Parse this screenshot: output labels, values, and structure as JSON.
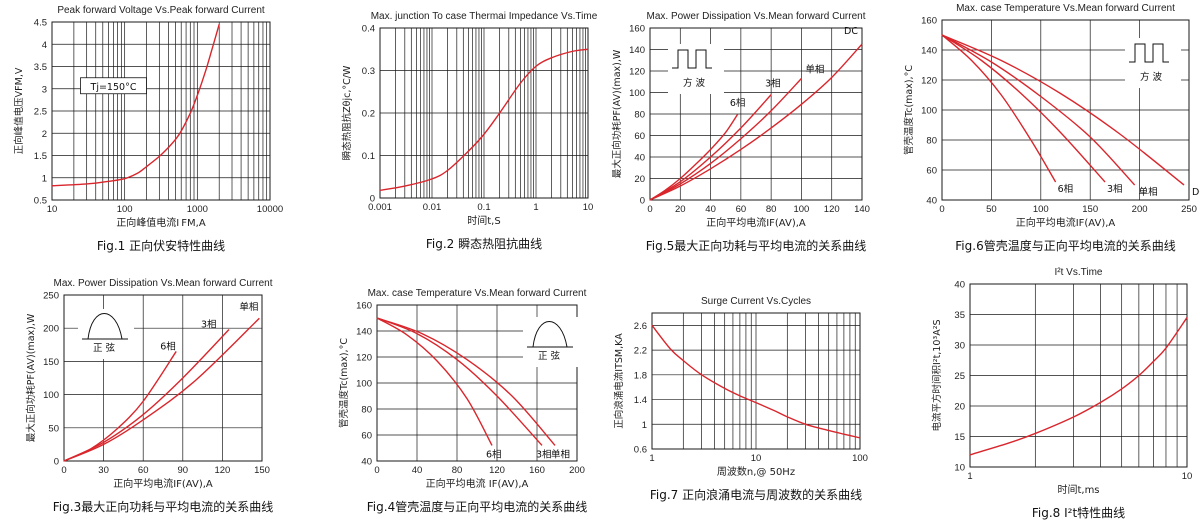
{
  "colors": {
    "curve": "#d9262c",
    "grid": "#1a1a1a"
  },
  "chart_data": [
    {
      "type": "line",
      "title": "Peak forward Voltage Vs.Peak forward Current",
      "caption": "Fig.1 正向伏安特性曲线",
      "xlabel": "正向峰值电流I FM,A",
      "ylabel": "正向峰值电压VFM,V",
      "xscale": "log",
      "xlim": [
        10,
        10000
      ],
      "ylim": [
        0.5,
        4.5
      ],
      "yticks": [
        0.5,
        1,
        1.5,
        2,
        2.5,
        3,
        3.5,
        4,
        4.5
      ],
      "xticks": [
        10,
        100,
        1000,
        10000
      ],
      "xtick_labels": [
        "10",
        "100",
        "1000",
        "10000"
      ],
      "grid": true,
      "annotations": [
        {
          "text": "Tj=150°C",
          "x": 28,
          "y": 3.0,
          "box": true
        }
      ],
      "series": [
        {
          "x": [
            10,
            30,
            60,
            100,
            150,
            200,
            300,
            400,
            500,
            600,
            800,
            1000,
            1300,
            1600,
            2000
          ],
          "y": [
            0.82,
            0.86,
            0.92,
            0.98,
            1.1,
            1.25,
            1.48,
            1.68,
            1.86,
            2.05,
            2.45,
            2.85,
            3.4,
            3.9,
            4.45
          ]
        }
      ]
    },
    {
      "type": "line",
      "title": "Max. junction To case Thermai Impedance Vs.Time",
      "caption": "Fig.2 瞬态热阻抗曲线",
      "xlabel": "时间t,S",
      "ylabel": "瞬态热阻抗Zθjc,°C/W",
      "xscale": "log",
      "xlim": [
        0.001,
        10
      ],
      "ylim": [
        0,
        0.4
      ],
      "yticks": [
        0,
        0.1,
        0.2,
        0.3,
        0.4
      ],
      "xticks": [
        0.001,
        0.01,
        0.1,
        1,
        10
      ],
      "xtick_labels": [
        "0.001",
        "0.01",
        "0.1",
        "1",
        "10"
      ],
      "grid": true,
      "series": [
        {
          "x": [
            0.001,
            0.003,
            0.01,
            0.02,
            0.05,
            0.1,
            0.2,
            0.5,
            1,
            2,
            5,
            10
          ],
          "y": [
            0.018,
            0.028,
            0.045,
            0.065,
            0.11,
            0.15,
            0.2,
            0.27,
            0.31,
            0.33,
            0.345,
            0.35
          ]
        }
      ]
    },
    {
      "type": "line",
      "title": "Max. Power Dissipation Vs.Mean forward Current",
      "caption": "Fig.5最大正向功耗与平均电流的关系曲线",
      "xlabel": "正向平均电流IF(AV),A",
      "ylabel": "最大正向功耗PF(AV)(max),W",
      "xlim": [
        0,
        140
      ],
      "ylim": [
        0,
        160
      ],
      "xticks": [
        0,
        20,
        40,
        60,
        80,
        100,
        120,
        140
      ],
      "yticks": [
        0,
        20,
        40,
        60,
        80,
        100,
        120,
        140,
        160
      ],
      "grid": true,
      "waveform": "square",
      "waveform_label": "方  波",
      "series": [
        {
          "name": "6相",
          "x": [
            0,
            10,
            20,
            30,
            40,
            50,
            58
          ],
          "y": [
            0,
            9,
            20,
            33,
            47,
            63,
            80
          ]
        },
        {
          "name": "3相",
          "x": [
            0,
            20,
            40,
            60,
            80
          ],
          "y": [
            0,
            17,
            40,
            67,
            98
          ]
        },
        {
          "name": "单相",
          "x": [
            0,
            20,
            40,
            60,
            80,
            100
          ],
          "y": [
            0,
            15,
            34,
            57,
            83,
            113
          ]
        },
        {
          "name": "DC",
          "x": [
            0,
            20,
            40,
            60,
            80,
            100,
            120,
            140
          ],
          "y": [
            0,
            13,
            29,
            47,
            67,
            89,
            114,
            145
          ]
        }
      ]
    },
    {
      "type": "line",
      "title": "Max. case Temperature Vs.Mean forward Current",
      "caption": "Fig.6管壳温度与正向平均电流的关系曲线",
      "xlabel": "正向平均电流IF(AV),A",
      "ylabel": "管壳温度Tc(max),°C",
      "xlim": [
        0,
        250
      ],
      "ylim": [
        40,
        160
      ],
      "xticks": [
        0,
        50,
        100,
        150,
        200,
        250
      ],
      "yticks": [
        40,
        60,
        80,
        100,
        120,
        140,
        160
      ],
      "grid": true,
      "waveform": "square",
      "waveform_label": "方  波",
      "series": [
        {
          "name": "6相",
          "x": [
            0,
            30,
            60,
            90,
            115
          ],
          "y": [
            150,
            133,
            110,
            80,
            52
          ]
        },
        {
          "name": "3相",
          "x": [
            0,
            40,
            80,
            120,
            165
          ],
          "y": [
            150,
            133,
            111,
            85,
            52
          ]
        },
        {
          "name": "单相",
          "x": [
            0,
            50,
            100,
            150,
            195
          ],
          "y": [
            150,
            132,
            109,
            82,
            50
          ]
        },
        {
          "name": "DC",
          "x": [
            0,
            60,
            120,
            180,
            245
          ],
          "y": [
            150,
            133,
            111,
            84,
            50
          ]
        }
      ]
    },
    {
      "type": "line",
      "title": "Max. Power Dissipation Vs.Mean forward Current",
      "caption": "Fig.3最大正向功耗与平均电流的关系曲线",
      "xlabel": "正向平均电流IF(AV),A",
      "ylabel": "最大正向功耗PF(AV)(max),W",
      "xlim": [
        0,
        150
      ],
      "ylim": [
        0,
        250
      ],
      "xticks": [
        0,
        30,
        60,
        90,
        120,
        150
      ],
      "yticks": [
        0,
        50,
        100,
        150,
        200,
        250
      ],
      "grid": true,
      "waveform": "sine",
      "waveform_label": "正  弦",
      "series": [
        {
          "name": "6相",
          "x": [
            0,
            20,
            40,
            60,
            85
          ],
          "y": [
            0,
            18,
            48,
            90,
            165
          ]
        },
        {
          "name": "3相",
          "x": [
            0,
            30,
            60,
            90,
            125
          ],
          "y": [
            0,
            28,
            70,
            125,
            198
          ]
        },
        {
          "name": "单相",
          "x": [
            0,
            30,
            60,
            100,
            148
          ],
          "y": [
            0,
            25,
            62,
            122,
            215
          ]
        }
      ]
    },
    {
      "type": "line",
      "title": "Max. case Temperature Vs.Mean forward Current",
      "caption": "Fig.4管壳温度与正向平均电流的关系曲线",
      "xlabel": "正向平均电流 IF(AV),A",
      "ylabel": "管壳温度Tc(max),°C",
      "xlim": [
        0,
        200
      ],
      "ylim": [
        40,
        160
      ],
      "xticks": [
        0,
        40,
        80,
        120,
        160,
        200
      ],
      "yticks": [
        40,
        60,
        80,
        100,
        120,
        140,
        160
      ],
      "grid": true,
      "waveform": "sine",
      "waveform_label": "正  弦",
      "series": [
        {
          "name": "6相",
          "x": [
            0,
            30,
            60,
            90,
            115
          ],
          "y": [
            150,
            137,
            117,
            88,
            52
          ]
        },
        {
          "name": "3相",
          "x": [
            0,
            40,
            80,
            120,
            165
          ],
          "y": [
            150,
            138,
            118,
            90,
            52
          ]
        },
        {
          "name": "单相",
          "x": [
            0,
            45,
            90,
            135,
            178
          ],
          "y": [
            150,
            138,
            118,
            90,
            52
          ]
        }
      ]
    },
    {
      "type": "line",
      "title": "Surge Current Vs.Cycles",
      "caption": "Fig.7 正向浪涌电流与周波数的关系曲线",
      "xlabel": "周波数n,@ 50Hz",
      "ylabel": "正向浪涌电流ITSM,KA",
      "xscale": "log",
      "xlim": [
        1,
        100
      ],
      "ylim": [
        0.6,
        2.8
      ],
      "yticks": [
        0.6,
        1.0,
        1.4,
        1.8,
        2.2,
        2.6
      ],
      "xticks": [
        1,
        10,
        100
      ],
      "xtick_labels": [
        "1",
        "10",
        "100"
      ],
      "grid": true,
      "series": [
        {
          "x": [
            1,
            1.5,
            2,
            3,
            5,
            7,
            10,
            15,
            20,
            30,
            50,
            70,
            100
          ],
          "y": [
            2.6,
            2.22,
            2.03,
            1.8,
            1.58,
            1.46,
            1.35,
            1.22,
            1.12,
            1.0,
            0.9,
            0.84,
            0.78
          ]
        }
      ]
    },
    {
      "type": "line",
      "title": "I²t Vs.Time",
      "caption": "Fig.8 I²t特性曲线",
      "xlabel": "时间t,ms",
      "ylabel": "电流平方时间积I²t,10³A²S",
      "xscale": "log",
      "xlim": [
        1,
        10
      ],
      "ylim": [
        10,
        40
      ],
      "yticks": [
        10,
        15,
        20,
        25,
        30,
        35,
        40
      ],
      "xticks": [
        1,
        10
      ],
      "xtick_labels": [
        "1",
        "10"
      ],
      "grid": true,
      "series": [
        {
          "x": [
            1,
            1.5,
            2,
            3,
            4,
            5,
            6,
            7,
            8,
            10
          ],
          "y": [
            12,
            13.9,
            15.5,
            18.2,
            20.6,
            22.8,
            25,
            27.3,
            29.5,
            34.5
          ]
        }
      ]
    }
  ]
}
